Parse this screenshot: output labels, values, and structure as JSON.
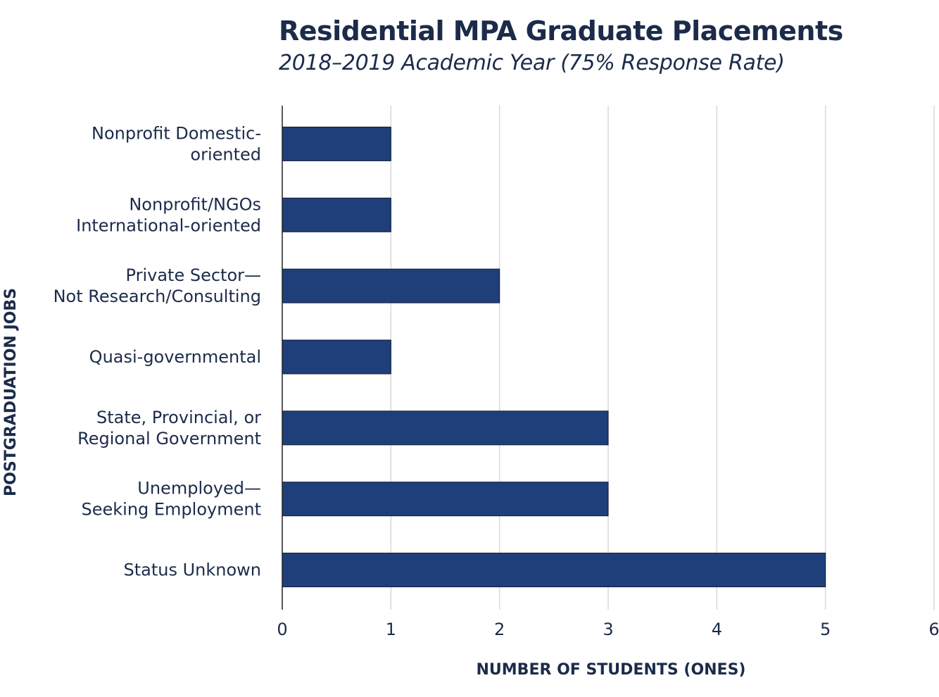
{
  "chart_data": {
    "type": "bar",
    "orientation": "horizontal",
    "title": "Residential MPA Graduate Placements",
    "subtitle": "2018–2019 Academic Year (75% Response Rate)",
    "xlabel": "NUMBER OF STUDENTS (ONES)",
    "ylabel": "POSTGRADUATION JOBS",
    "categories": [
      [
        "Nonprofit Domestic-",
        "oriented"
      ],
      [
        "Nonprofit/NGOs",
        "International-oriented"
      ],
      [
        "Private Sector—",
        "Not Research/Consulting"
      ],
      [
        "Quasi-governmental"
      ],
      [
        "State, Provincial, or",
        "Regional Government"
      ],
      [
        "Unemployed—",
        "Seeking Employment"
      ],
      [
        "Status Unknown"
      ]
    ],
    "values": [
      1,
      1,
      2,
      1,
      3,
      3,
      5
    ],
    "xlim": [
      0,
      6
    ],
    "xticks": [
      0,
      1,
      2,
      3,
      4,
      5,
      6
    ],
    "grid": "vertical",
    "bar_color": "#1f3f7a",
    "grid_color": "#d9d9d9",
    "text_color": "#1c2b4a"
  }
}
